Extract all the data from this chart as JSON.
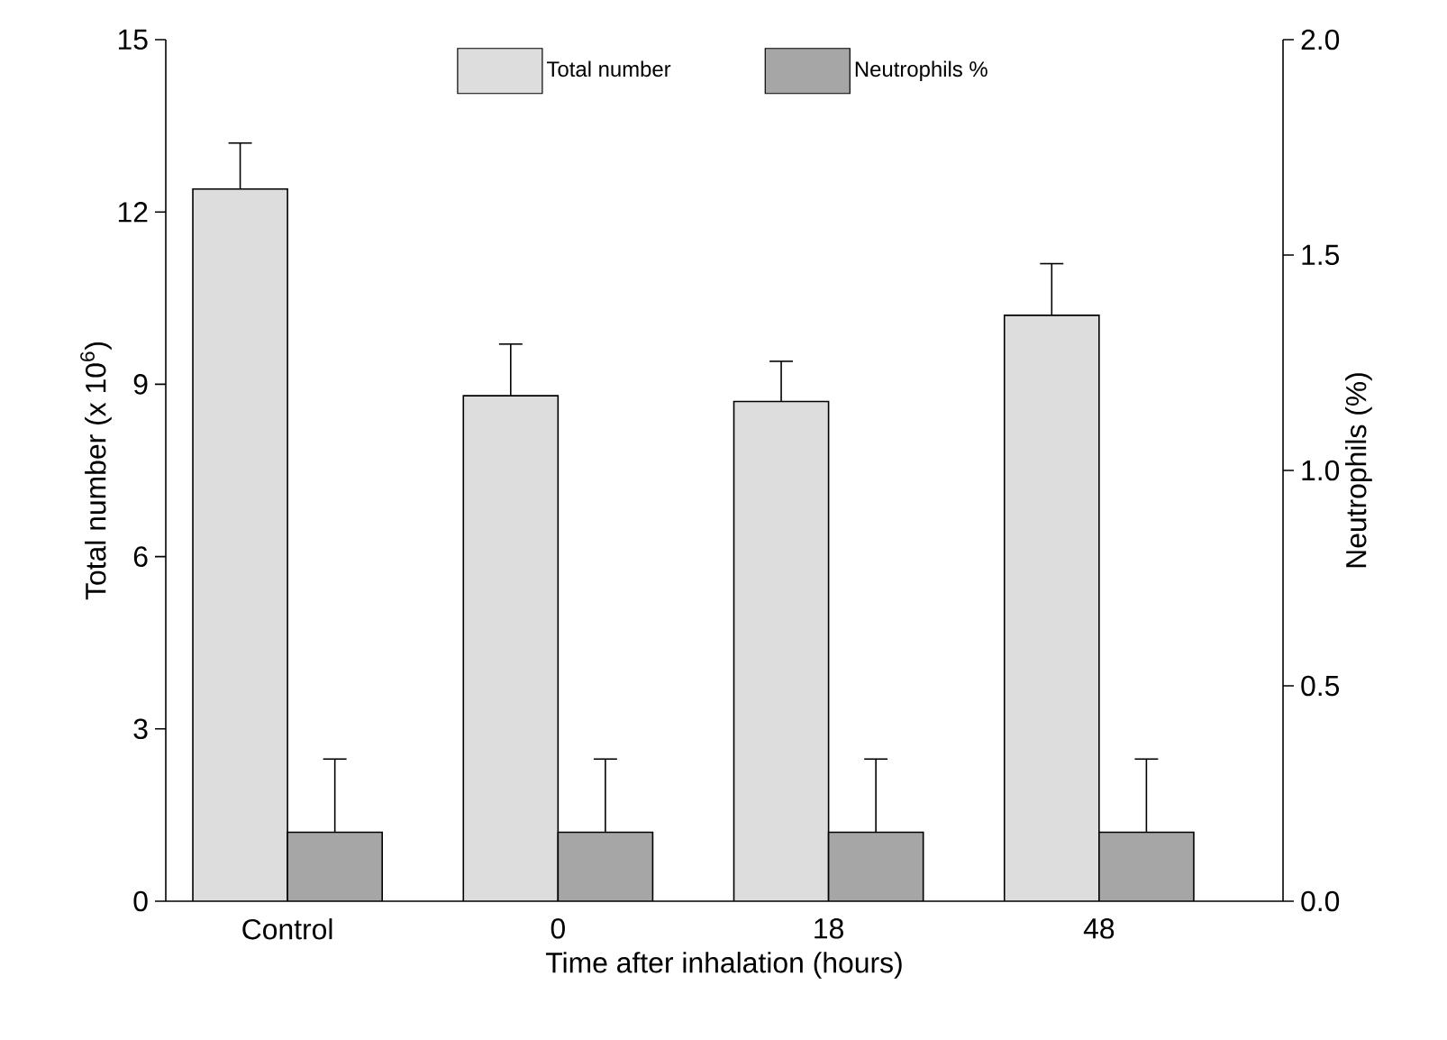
{
  "chart_data": {
    "type": "bar",
    "categories": [
      "Control",
      "0",
      "18",
      "48"
    ],
    "xlabel": "Time after inhalation (hours)",
    "ylabel": "Total number (x 10$^{6}$)",
    "y2label": "Neutrophils (%)",
    "ylim": [
      0,
      15
    ],
    "yticks": [
      0,
      3,
      6,
      9,
      12,
      15
    ],
    "y2lim": [
      0,
      2.0
    ],
    "y2ticks": [
      {
        "value": 0,
        "label": "0.0"
      },
      {
        "value": 0.5,
        "label": "0.5"
      },
      {
        "value": 1,
        "label": "1.0"
      },
      {
        "value": 1.5,
        "label": "1.5"
      },
      {
        "value": 2,
        "label": "2.0"
      }
    ],
    "legend": "top",
    "series": [
      {
        "name": "Total number",
        "color": "#dddddd",
        "values": [
          12.4,
          8.8,
          8.7,
          10.2
        ],
        "errors": [
          [
            12.4,
            13.2
          ],
          [
            8.8,
            9.7
          ],
          [
            8.7,
            9.4
          ],
          [
            10.2,
            11.1
          ]
        ]
      },
      {
        "name": "Neutrophils %",
        "color": "#a6a6a6",
        "axis": "y2",
        "values": [
          0.16,
          0.16,
          0.16,
          0.16
        ],
        "errors": [
          [
            0.16,
            0.33
          ],
          [
            0.16,
            0.33
          ],
          [
            0.16,
            0.33
          ],
          [
            0.16,
            0.33
          ]
        ]
      }
    ]
  }
}
